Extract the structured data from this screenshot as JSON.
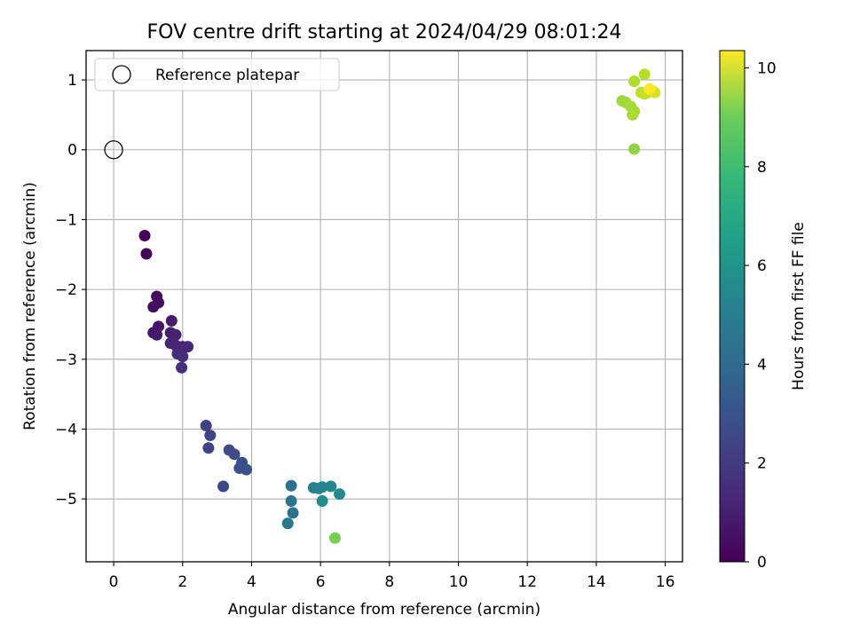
{
  "chart_data": {
    "type": "scatter",
    "title": "FOV centre drift starting at 2024/04/29 08:01:24",
    "xlabel": "Angular distance from reference (arcmin)",
    "ylabel": "Rotation from reference (arcmin)",
    "xlim": [
      -0.8,
      16.5
    ],
    "ylim": [
      -5.9,
      1.42
    ],
    "xticks": [
      0,
      2,
      4,
      6,
      8,
      10,
      12,
      14,
      16
    ],
    "yticks": [
      -5,
      -4,
      -3,
      -2,
      -1,
      0,
      1
    ],
    "grid": true,
    "legend": {
      "position": "top-left",
      "entries": [
        "Reference platepar"
      ]
    },
    "reference_point": {
      "x": 0,
      "y": 0
    },
    "colorbar": {
      "label": "Hours from first FF file",
      "range": [
        0,
        10.35
      ],
      "ticks": [
        0,
        2,
        4,
        6,
        8,
        10
      ],
      "colormap": "viridis"
    },
    "points": [
      {
        "x": 0.9,
        "y": -1.23,
        "c": 0.05
      },
      {
        "x": 0.95,
        "y": -1.49,
        "c": 0.1
      },
      {
        "x": 1.25,
        "y": -2.1,
        "c": 0.3
      },
      {
        "x": 1.3,
        "y": -2.19,
        "c": 0.35
      },
      {
        "x": 1.15,
        "y": -2.25,
        "c": 0.4
      },
      {
        "x": 1.3,
        "y": -2.53,
        "c": 0.6
      },
      {
        "x": 1.15,
        "y": -2.62,
        "c": 0.65
      },
      {
        "x": 1.25,
        "y": -2.65,
        "c": 0.7
      },
      {
        "x": 1.68,
        "y": -2.45,
        "c": 0.8
      },
      {
        "x": 1.65,
        "y": -2.62,
        "c": 0.9
      },
      {
        "x": 1.8,
        "y": -2.65,
        "c": 0.95
      },
      {
        "x": 1.65,
        "y": -2.77,
        "c": 1.0
      },
      {
        "x": 1.8,
        "y": -2.8,
        "c": 1.05
      },
      {
        "x": 2.0,
        "y": -2.82,
        "c": 1.1
      },
      {
        "x": 2.15,
        "y": -2.82,
        "c": 1.2
      },
      {
        "x": 1.85,
        "y": -2.92,
        "c": 1.25
      },
      {
        "x": 2.0,
        "y": -2.96,
        "c": 1.3
      },
      {
        "x": 1.97,
        "y": -3.12,
        "c": 1.35
      },
      {
        "x": 2.68,
        "y": -3.95,
        "c": 2.0
      },
      {
        "x": 2.8,
        "y": -4.09,
        "c": 2.1
      },
      {
        "x": 2.75,
        "y": -4.27,
        "c": 2.15
      },
      {
        "x": 3.35,
        "y": -4.3,
        "c": 2.3
      },
      {
        "x": 3.5,
        "y": -4.36,
        "c": 2.4
      },
      {
        "x": 3.72,
        "y": -4.48,
        "c": 2.5
      },
      {
        "x": 3.65,
        "y": -4.56,
        "c": 2.55
      },
      {
        "x": 3.85,
        "y": -4.58,
        "c": 2.6
      },
      {
        "x": 3.18,
        "y": -4.82,
        "c": 2.2
      },
      {
        "x": 5.15,
        "y": -4.81,
        "c": 3.8
      },
      {
        "x": 5.15,
        "y": -5.03,
        "c": 3.9
      },
      {
        "x": 5.2,
        "y": -5.2,
        "c": 4.0
      },
      {
        "x": 5.05,
        "y": -5.35,
        "c": 4.1
      },
      {
        "x": 5.8,
        "y": -4.84,
        "c": 4.5
      },
      {
        "x": 5.95,
        "y": -4.85,
        "c": 4.6
      },
      {
        "x": 6.05,
        "y": -4.83,
        "c": 4.7
      },
      {
        "x": 6.3,
        "y": -4.82,
        "c": 4.8
      },
      {
        "x": 6.55,
        "y": -4.93,
        "c": 4.9
      },
      {
        "x": 6.05,
        "y": -5.03,
        "c": 4.95
      },
      {
        "x": 6.42,
        "y": -5.56,
        "c": 8.2
      },
      {
        "x": 15.1,
        "y": 0.01,
        "c": 8.6
      },
      {
        "x": 14.75,
        "y": 0.7,
        "c": 8.8
      },
      {
        "x": 14.85,
        "y": 0.68,
        "c": 8.85
      },
      {
        "x": 15.0,
        "y": 0.62,
        "c": 8.9
      },
      {
        "x": 15.1,
        "y": 0.55,
        "c": 8.95
      },
      {
        "x": 15.05,
        "y": 0.5,
        "c": 9.0
      },
      {
        "x": 15.1,
        "y": 0.98,
        "c": 9.1
      },
      {
        "x": 15.4,
        "y": 1.08,
        "c": 9.2
      },
      {
        "x": 15.3,
        "y": 0.82,
        "c": 9.3
      },
      {
        "x": 15.4,
        "y": 0.8,
        "c": 9.4
      },
      {
        "x": 15.5,
        "y": 0.82,
        "c": 9.5
      },
      {
        "x": 15.6,
        "y": 0.85,
        "c": 9.6
      },
      {
        "x": 15.7,
        "y": 0.82,
        "c": 9.7
      },
      {
        "x": 15.55,
        "y": 0.87,
        "c": 10.35
      }
    ]
  }
}
